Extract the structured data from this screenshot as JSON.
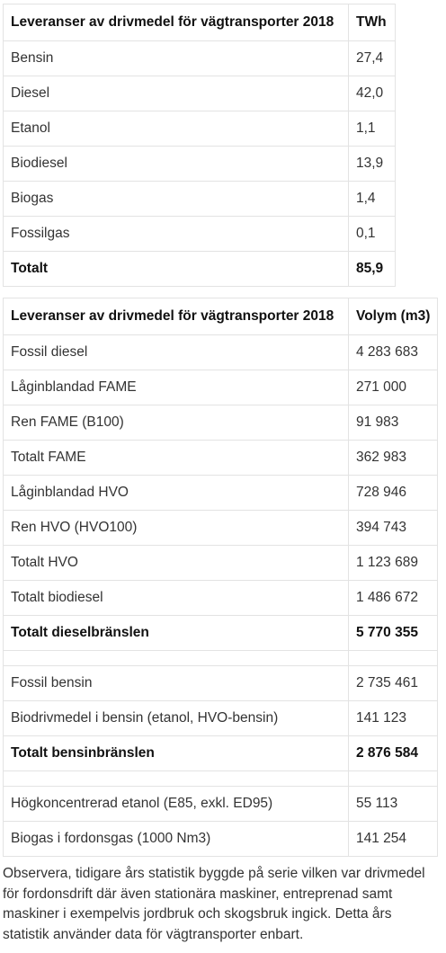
{
  "table1": {
    "header": [
      "Leveranser av drivmedel för vägtransporter 2018",
      "TWh"
    ],
    "rows": [
      {
        "label": "Bensin",
        "value": "27,4"
      },
      {
        "label": "Diesel",
        "value": "42,0"
      },
      {
        "label": "Etanol",
        "value": "1,1"
      },
      {
        "label": "Biodiesel",
        "value": "13,9"
      },
      {
        "label": "Biogas",
        "value": "1,4"
      },
      {
        "label": "Fossilgas",
        "value": "0,1"
      },
      {
        "label": "Totalt",
        "value": "85,9"
      }
    ]
  },
  "table2": {
    "header": [
      "Leveranser av drivmedel för vägtransporter 2018",
      "Volym (m3)"
    ],
    "rows": [
      {
        "label": "Fossil diesel",
        "value": "4 283 683"
      },
      {
        "label": "Låginblandad FAME",
        "value": "271 000"
      },
      {
        "label": "Ren FAME (B100)",
        "value": "91 983"
      },
      {
        "label": "Totalt FAME",
        "value": "362 983"
      },
      {
        "label": "Låginblandad HVO",
        "value": "728 946"
      },
      {
        "label": "Ren HVO (HVO100)",
        "value": "394 743"
      },
      {
        "label": "Totalt HVO",
        "value": "1 123 689"
      },
      {
        "label": "Totalt biodiesel",
        "value": "1 486 672"
      },
      {
        "label": "Totalt dieselbränslen",
        "value": "5 770 355"
      },
      {
        "label": "Fossil bensin",
        "value": "2 735 461"
      },
      {
        "label": "Biodrivmedel i bensin (etanol, HVO-bensin)",
        "value": "141 123"
      },
      {
        "label": "Totalt bensinbränslen",
        "value": "2 876 584"
      },
      {
        "label": "Högkoncentrerad etanol (E85, exkl. ED95)",
        "value": "55 113"
      },
      {
        "label": "Biogas i fordonsgas (1000 Nm3)",
        "value": "141 254"
      }
    ]
  },
  "note": "Observera, tidigare års statistik byggde på serie vilken var drivmedel för fordonsdrift där även stationära maskiner, entreprenad samt maskiner i exempelvis jordbruk och skogsbruk ingick. Detta års statistik använder data för vägtransporter enbart."
}
